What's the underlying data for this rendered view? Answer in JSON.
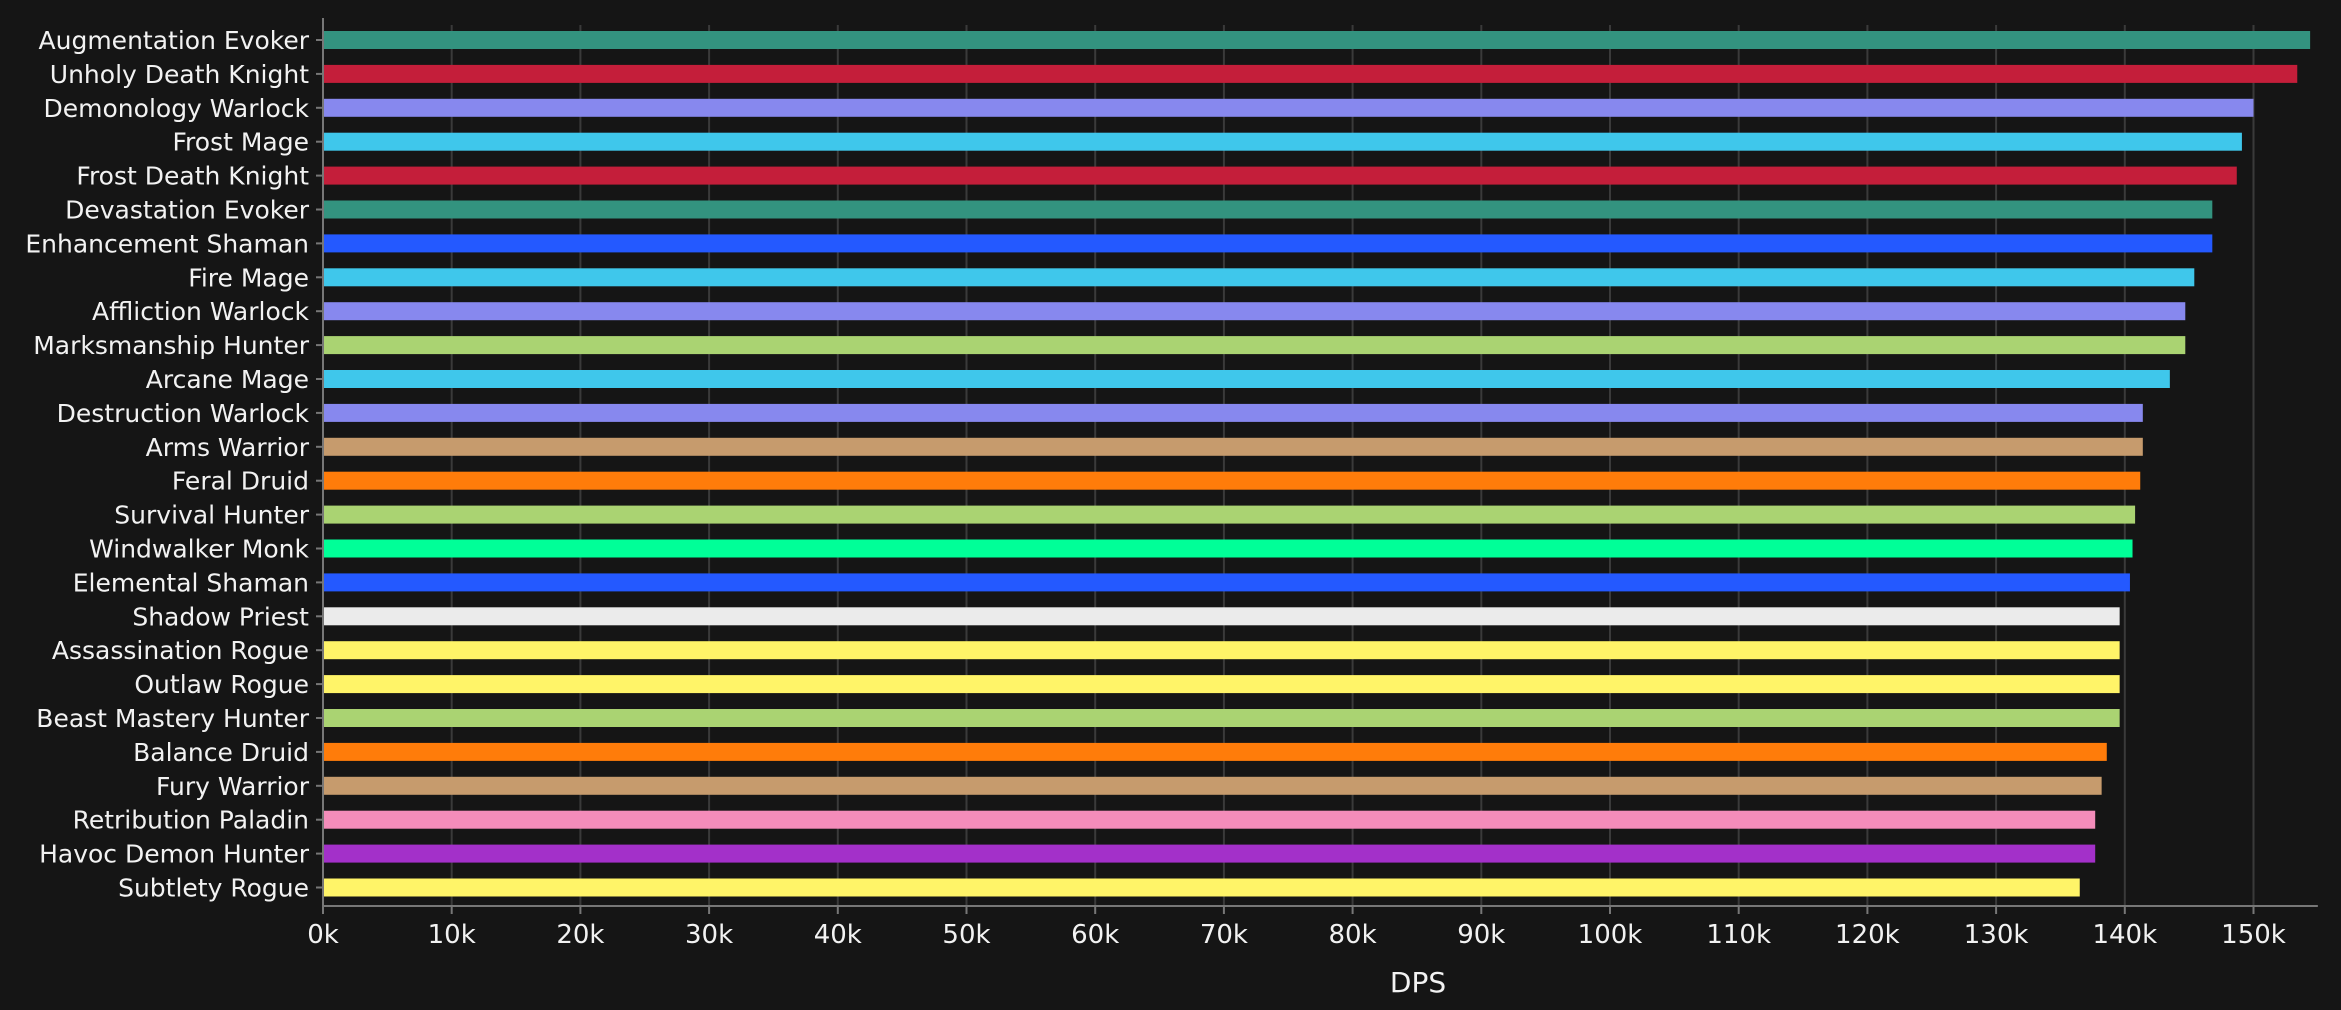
{
  "chart_data": {
    "type": "bar",
    "orientation": "horizontal",
    "xlabel": "DPS",
    "ylabel": "",
    "xlim": [
      0,
      155000
    ],
    "xticks": [
      0,
      10000,
      20000,
      30000,
      40000,
      50000,
      60000,
      70000,
      80000,
      90000,
      100000,
      110000,
      120000,
      130000,
      140000,
      150000
    ],
    "xtick_labels": [
      "0k",
      "10k",
      "20k",
      "30k",
      "40k",
      "50k",
      "60k",
      "70k",
      "80k",
      "90k",
      "100k",
      "110k",
      "120k",
      "130k",
      "140k",
      "150k"
    ],
    "grid": "vertical",
    "categories": [
      "Augmentation Evoker",
      "Unholy Death Knight",
      "Demonology Warlock",
      "Frost Mage",
      "Frost Death Knight",
      "Devastation Evoker",
      "Enhancement Shaman",
      "Fire Mage",
      "Affliction Warlock",
      "Marksmanship Hunter",
      "Arcane Mage",
      "Destruction Warlock",
      "Arms Warrior",
      "Feral Druid",
      "Survival Hunter",
      "Windwalker Monk",
      "Elemental Shaman",
      "Shadow Priest",
      "Assassination Rogue",
      "Outlaw Rogue",
      "Beast Mastery Hunter",
      "Balance Druid",
      "Fury Warrior",
      "Retribution Paladin",
      "Havoc Demon Hunter",
      "Subtlety Rogue"
    ],
    "values": [
      154400,
      153400,
      150000,
      149100,
      148700,
      146800,
      146800,
      145400,
      144700,
      144700,
      143500,
      141400,
      141400,
      141200,
      140800,
      140600,
      140400,
      139600,
      139600,
      139600,
      139600,
      138600,
      138200,
      137700,
      137700,
      136500
    ],
    "colors": [
      "#33937f",
      "#c41e3a",
      "#8788ee",
      "#3fc7eb",
      "#c41e3a",
      "#33937f",
      "#2459ff",
      "#3fc7eb",
      "#8788ee",
      "#aad372",
      "#3fc7eb",
      "#8788ee",
      "#c69b6d",
      "#ff7c0a",
      "#aad372",
      "#00ff98",
      "#2459ff",
      "#ebebeb",
      "#fff468",
      "#fff468",
      "#aad372",
      "#ff7c0a",
      "#c69b6d",
      "#f48cba",
      "#a330c9",
      "#fff468"
    ]
  }
}
